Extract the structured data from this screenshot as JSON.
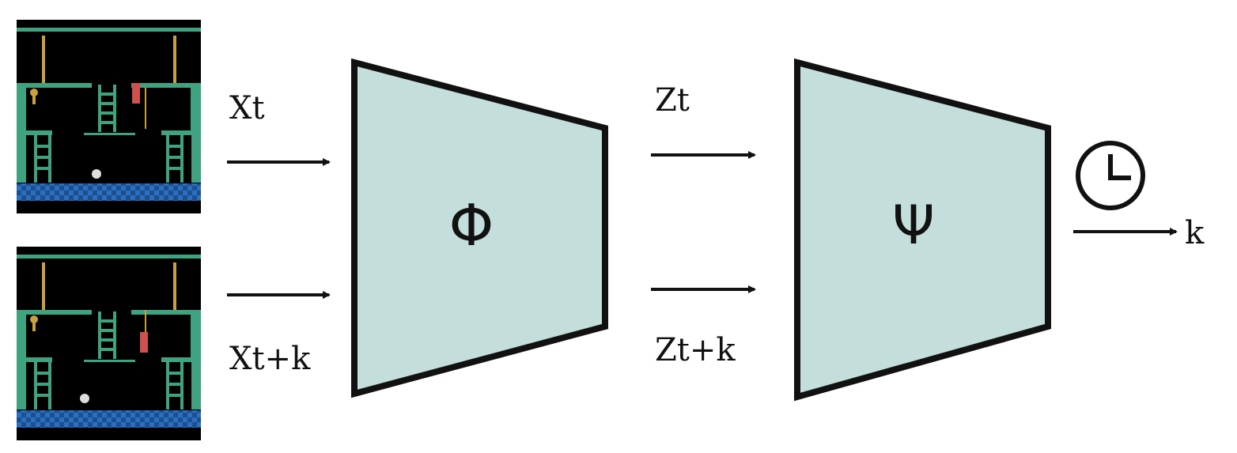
{
  "labels": {
    "input_top": "Xt",
    "input_bottom": "Xt+k",
    "latent_top": "Zt",
    "latent_bottom": "Zt+k",
    "encoder_symbol": "Φ",
    "classifier_symbol": "Ψ",
    "output": "k"
  },
  "colors": {
    "block_fill": "#c4dedb",
    "block_stroke": "#111111",
    "game_floor": "#3fa37f",
    "game_water": "#2a6fc0",
    "game_rope": "#c8a040",
    "game_player": "#d05050"
  },
  "icons": {
    "clock": "clock-icon"
  }
}
